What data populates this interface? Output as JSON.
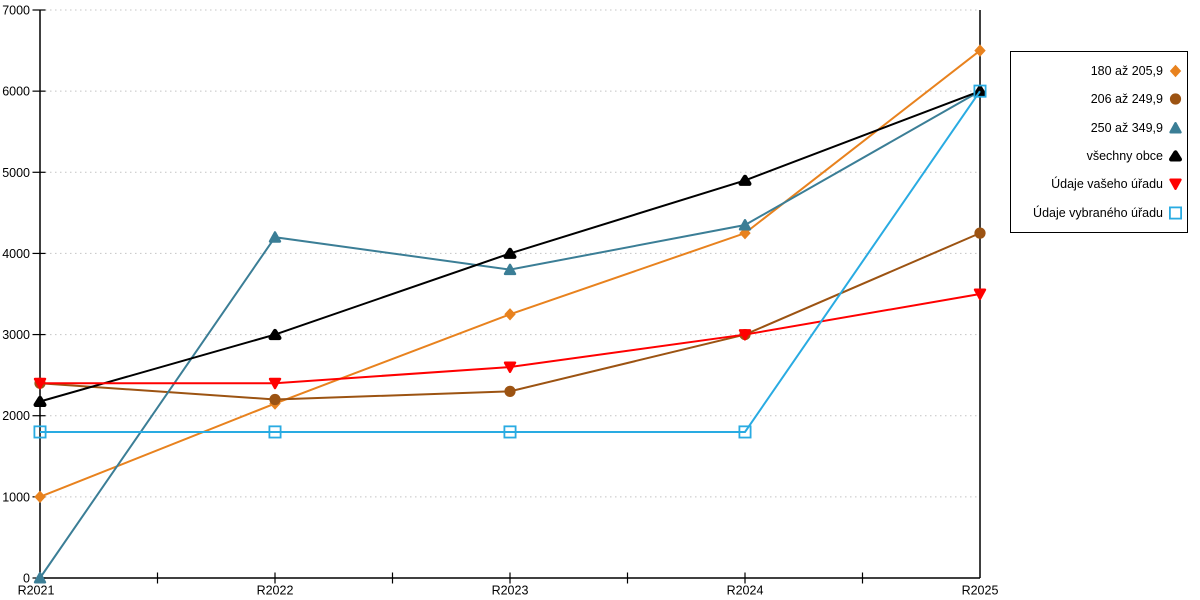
{
  "chart_data": {
    "type": "line",
    "title": "",
    "xlabel": "",
    "ylabel": "",
    "x_categories": [
      "R2021",
      "R2022",
      "R2023",
      "R2024",
      "R2025"
    ],
    "y_ticks": [
      0,
      1000,
      2000,
      3000,
      4000,
      5000,
      6000,
      7000
    ],
    "ylim": [
      0,
      7000
    ],
    "grid": "horizontal-dotted",
    "legend_position": "right",
    "series": [
      {
        "name": "180 až 205,9",
        "marker": "diamond",
        "color": "#E8821E",
        "values": [
          1000,
          2150,
          3250,
          4250,
          6500
        ]
      },
      {
        "name": "206 až 249,9",
        "marker": "circle",
        "color": "#9C5312",
        "values": [
          2400,
          2200,
          2300,
          3000,
          4250
        ]
      },
      {
        "name": "250 až 349,9",
        "marker": "triangle-up",
        "color": "#3B7E96",
        "values": [
          0,
          4200,
          3800,
          4350,
          6000
        ]
      },
      {
        "name": "všechny obce",
        "marker": "triangle-up-rounded",
        "color": "#000000",
        "values": [
          2175,
          3000,
          4000,
          4900,
          6000
        ]
      },
      {
        "name": "Údaje vašeho úřadu",
        "marker": "triangle-down",
        "color": "#FF0000",
        "values": [
          2400,
          2400,
          2600,
          3000,
          3500
        ]
      },
      {
        "name": "Údaje vybraného úřadu",
        "marker": "square-open",
        "color": "#29ABE2",
        "values": [
          1800,
          1800,
          1800,
          1800,
          6000
        ]
      }
    ],
    "colors": {
      "grid": "#c4c4c4",
      "axis": "#000000"
    }
  }
}
